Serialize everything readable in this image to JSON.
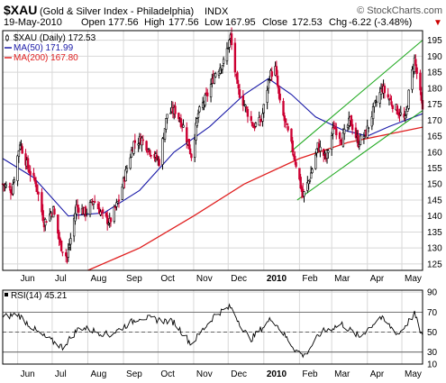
{
  "header": {
    "symbol": "$XAU",
    "description": "(Gold & Silver Index - Philadelphia)",
    "exchange": "INDX",
    "watermark": "© StockCharts.com",
    "date": "19-May-2010",
    "open_label": "Open",
    "open": "177.56",
    "high_label": "High",
    "high": "177.56",
    "low_label": "Low",
    "low": "167.95",
    "close_label": "Close",
    "close": "172.53",
    "chg_label": "Chg",
    "chg": "-6.22 (-3.48%)",
    "chg_marker": "▼"
  },
  "legend": {
    "price": "$XAU (Daily) 172.53",
    "ma50": "MA(50) 171.99",
    "ma200": "MA(200) 167.80"
  },
  "rsi_legend": "RSI(14) 45.21",
  "colors": {
    "up": "#000000",
    "down": "#cc0033",
    "ma50": "#1a1aa8",
    "ma200": "#e02020",
    "channel": "#22aa22",
    "rsi": "#000000",
    "chg": "#cc0000"
  },
  "chart_data": [
    {
      "type": "candlestick",
      "title": "$XAU (Gold & Silver Index - Philadelphia)",
      "ylim": [
        123,
        198
      ],
      "y_ticks": [
        125,
        130,
        135,
        140,
        145,
        150,
        155,
        160,
        165,
        170,
        175,
        180,
        185,
        190,
        195
      ],
      "x_labels": [
        {
          "label": "Jun",
          "date": "2009-06-01",
          "bold": false
        },
        {
          "label": "Jul",
          "date": "2009-07-01",
          "bold": false
        },
        {
          "label": "Aug",
          "date": "2009-08-01",
          "bold": false
        },
        {
          "label": "Sep",
          "date": "2009-09-01",
          "bold": false
        },
        {
          "label": "Oct",
          "date": "2009-10-01",
          "bold": false
        },
        {
          "label": "Nov",
          "date": "2009-11-01",
          "bold": false
        },
        {
          "label": "Dec",
          "date": "2009-12-01",
          "bold": false
        },
        {
          "label": "2010",
          "date": "2010-01-01",
          "bold": true
        },
        {
          "label": "Feb",
          "date": "2010-02-01",
          "bold": false
        },
        {
          "label": "Mar",
          "date": "2010-03-01",
          "bold": false
        },
        {
          "label": "Apr",
          "date": "2010-04-01",
          "bold": false
        },
        {
          "label": "May",
          "date": "2010-05-01",
          "bold": false
        }
      ],
      "date_range": [
        "2009-05-19",
        "2010-05-19"
      ],
      "price_path": [
        {
          "date": "2009-05-19",
          "close": 150
        },
        {
          "date": "2009-05-27",
          "close": 148
        },
        {
          "date": "2009-06-03",
          "close": 163
        },
        {
          "date": "2009-06-10",
          "close": 155
        },
        {
          "date": "2009-06-17",
          "close": 150
        },
        {
          "date": "2009-06-24",
          "close": 138
        },
        {
          "date": "2009-07-02",
          "close": 142
        },
        {
          "date": "2009-07-08",
          "close": 131
        },
        {
          "date": "2009-07-14",
          "close": 127
        },
        {
          "date": "2009-07-22",
          "close": 143
        },
        {
          "date": "2009-07-30",
          "close": 141
        },
        {
          "date": "2009-08-06",
          "close": 145
        },
        {
          "date": "2009-08-14",
          "close": 140
        },
        {
          "date": "2009-08-20",
          "close": 138
        },
        {
          "date": "2009-08-28",
          "close": 145
        },
        {
          "date": "2009-09-04",
          "close": 155
        },
        {
          "date": "2009-09-10",
          "close": 163
        },
        {
          "date": "2009-09-17",
          "close": 164
        },
        {
          "date": "2009-09-25",
          "close": 160
        },
        {
          "date": "2009-10-02",
          "close": 157
        },
        {
          "date": "2009-10-09",
          "close": 172
        },
        {
          "date": "2009-10-16",
          "close": 173
        },
        {
          "date": "2009-10-23",
          "close": 168
        },
        {
          "date": "2009-10-30",
          "close": 159
        },
        {
          "date": "2009-11-05",
          "close": 172
        },
        {
          "date": "2009-11-13",
          "close": 178
        },
        {
          "date": "2009-11-20",
          "close": 185
        },
        {
          "date": "2009-11-27",
          "close": 188
        },
        {
          "date": "2009-12-03",
          "close": 196
        },
        {
          "date": "2009-12-09",
          "close": 180
        },
        {
          "date": "2009-12-16",
          "close": 174
        },
        {
          "date": "2009-12-23",
          "close": 168
        },
        {
          "date": "2009-12-30",
          "close": 170
        },
        {
          "date": "2010-01-06",
          "close": 184
        },
        {
          "date": "2010-01-11",
          "close": 186
        },
        {
          "date": "2010-01-15",
          "close": 175
        },
        {
          "date": "2010-01-22",
          "close": 166
        },
        {
          "date": "2010-01-28",
          "close": 158
        },
        {
          "date": "2010-02-04",
          "close": 146
        },
        {
          "date": "2010-02-10",
          "close": 152
        },
        {
          "date": "2010-02-17",
          "close": 162
        },
        {
          "date": "2010-02-24",
          "close": 158
        },
        {
          "date": "2010-03-03",
          "close": 168
        },
        {
          "date": "2010-03-10",
          "close": 164
        },
        {
          "date": "2010-03-17",
          "close": 170
        },
        {
          "date": "2010-03-24",
          "close": 163
        },
        {
          "date": "2010-03-31",
          "close": 166
        },
        {
          "date": "2010-04-07",
          "close": 174
        },
        {
          "date": "2010-04-14",
          "close": 180
        },
        {
          "date": "2010-04-21",
          "close": 176
        },
        {
          "date": "2010-04-27",
          "close": 173
        },
        {
          "date": "2010-05-04",
          "close": 170
        },
        {
          "date": "2010-05-08",
          "close": 181
        },
        {
          "date": "2010-05-12",
          "close": 189
        },
        {
          "date": "2010-05-17",
          "close": 178
        },
        {
          "date": "2010-05-19",
          "close": 172.53
        }
      ],
      "ma50_path": [
        {
          "date": "2009-05-19",
          "value": 158
        },
        {
          "date": "2009-06-15",
          "value": 152
        },
        {
          "date": "2009-07-15",
          "value": 140
        },
        {
          "date": "2009-08-15",
          "value": 141
        },
        {
          "date": "2009-09-15",
          "value": 148
        },
        {
          "date": "2009-10-15",
          "value": 160
        },
        {
          "date": "2009-11-15",
          "value": 168
        },
        {
          "date": "2009-12-15",
          "value": 178
        },
        {
          "date": "2010-01-05",
          "value": 183
        },
        {
          "date": "2010-01-25",
          "value": 178
        },
        {
          "date": "2010-02-15",
          "value": 171
        },
        {
          "date": "2010-03-10",
          "value": 167
        },
        {
          "date": "2010-04-01",
          "value": 165
        },
        {
          "date": "2010-04-20",
          "value": 168
        },
        {
          "date": "2010-05-19",
          "value": 171.99
        }
      ],
      "ma200_path": [
        {
          "date": "2009-08-01",
          "value": 123
        },
        {
          "date": "2009-09-15",
          "value": 130
        },
        {
          "date": "2009-11-01",
          "value": 140
        },
        {
          "date": "2009-12-15",
          "value": 150
        },
        {
          "date": "2010-02-01",
          "value": 158
        },
        {
          "date": "2010-03-15",
          "value": 163
        },
        {
          "date": "2010-05-19",
          "value": 167.8
        }
      ],
      "channel_lines": [
        {
          "from": {
            "date": "2010-01-24",
            "value": 160
          },
          "to": {
            "date": "2010-05-19",
            "value": 195
          }
        },
        {
          "from": {
            "date": "2010-01-30",
            "value": 145
          },
          "to": {
            "date": "2010-05-19",
            "value": 173
          }
        }
      ]
    },
    {
      "type": "line",
      "title": "RSI(14)",
      "ylim": [
        18,
        92
      ],
      "y_ticks": [
        10,
        30,
        50,
        70,
        90
      ],
      "ref_lines": [
        30,
        50,
        70
      ],
      "x_labels": [
        {
          "label": "Jun",
          "bold": false
        },
        {
          "label": "Jul",
          "bold": false
        },
        {
          "label": "Aug",
          "bold": false
        },
        {
          "label": "Sep",
          "bold": false
        },
        {
          "label": "Oct",
          "bold": false
        },
        {
          "label": "Nov",
          "bold": false
        },
        {
          "label": "Dec",
          "bold": false
        },
        {
          "label": "2010",
          "bold": true
        },
        {
          "label": "Feb",
          "bold": false
        },
        {
          "label": "Mar",
          "bold": false
        },
        {
          "label": "Apr",
          "bold": false
        },
        {
          "label": "May",
          "bold": false
        }
      ],
      "rsi_path": [
        {
          "date": "2009-05-19",
          "value": 65
        },
        {
          "date": "2009-06-01",
          "value": 68
        },
        {
          "date": "2009-06-20",
          "value": 48
        },
        {
          "date": "2009-07-10",
          "value": 35
        },
        {
          "date": "2009-07-25",
          "value": 55
        },
        {
          "date": "2009-08-20",
          "value": 47
        },
        {
          "date": "2009-09-15",
          "value": 65
        },
        {
          "date": "2009-10-15",
          "value": 60
        },
        {
          "date": "2009-10-30",
          "value": 38
        },
        {
          "date": "2009-11-20",
          "value": 68
        },
        {
          "date": "2009-12-03",
          "value": 75
        },
        {
          "date": "2009-12-20",
          "value": 42
        },
        {
          "date": "2010-01-08",
          "value": 64
        },
        {
          "date": "2010-01-28",
          "value": 33
        },
        {
          "date": "2010-02-05",
          "value": 26
        },
        {
          "date": "2010-02-20",
          "value": 50
        },
        {
          "date": "2010-03-10",
          "value": 58
        },
        {
          "date": "2010-03-25",
          "value": 45
        },
        {
          "date": "2010-04-12",
          "value": 65
        },
        {
          "date": "2010-04-28",
          "value": 48
        },
        {
          "date": "2010-05-12",
          "value": 68
        },
        {
          "date": "2010-05-19",
          "value": 45.21
        }
      ]
    }
  ]
}
